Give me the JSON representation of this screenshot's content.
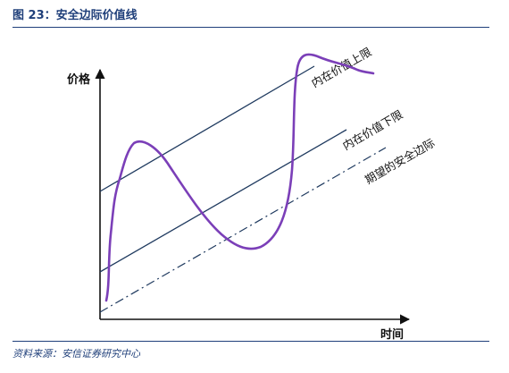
{
  "figure": {
    "title": "图 23：安全边际价值线",
    "source": "资料来源：安信证券研究中心"
  },
  "diagram": {
    "y_axis_label": "价格",
    "x_axis_label": "时间",
    "lines": {
      "upper": "内在价值上限",
      "lower": "内在价值下限",
      "margin": "期望的安全边际"
    },
    "colors": {
      "axis": "#111111",
      "value_lines": "#1f3a5f",
      "margin_line": "#1f3a5f",
      "price_curve": "#7b3fb8",
      "title": "#1f3f7a"
    }
  }
}
